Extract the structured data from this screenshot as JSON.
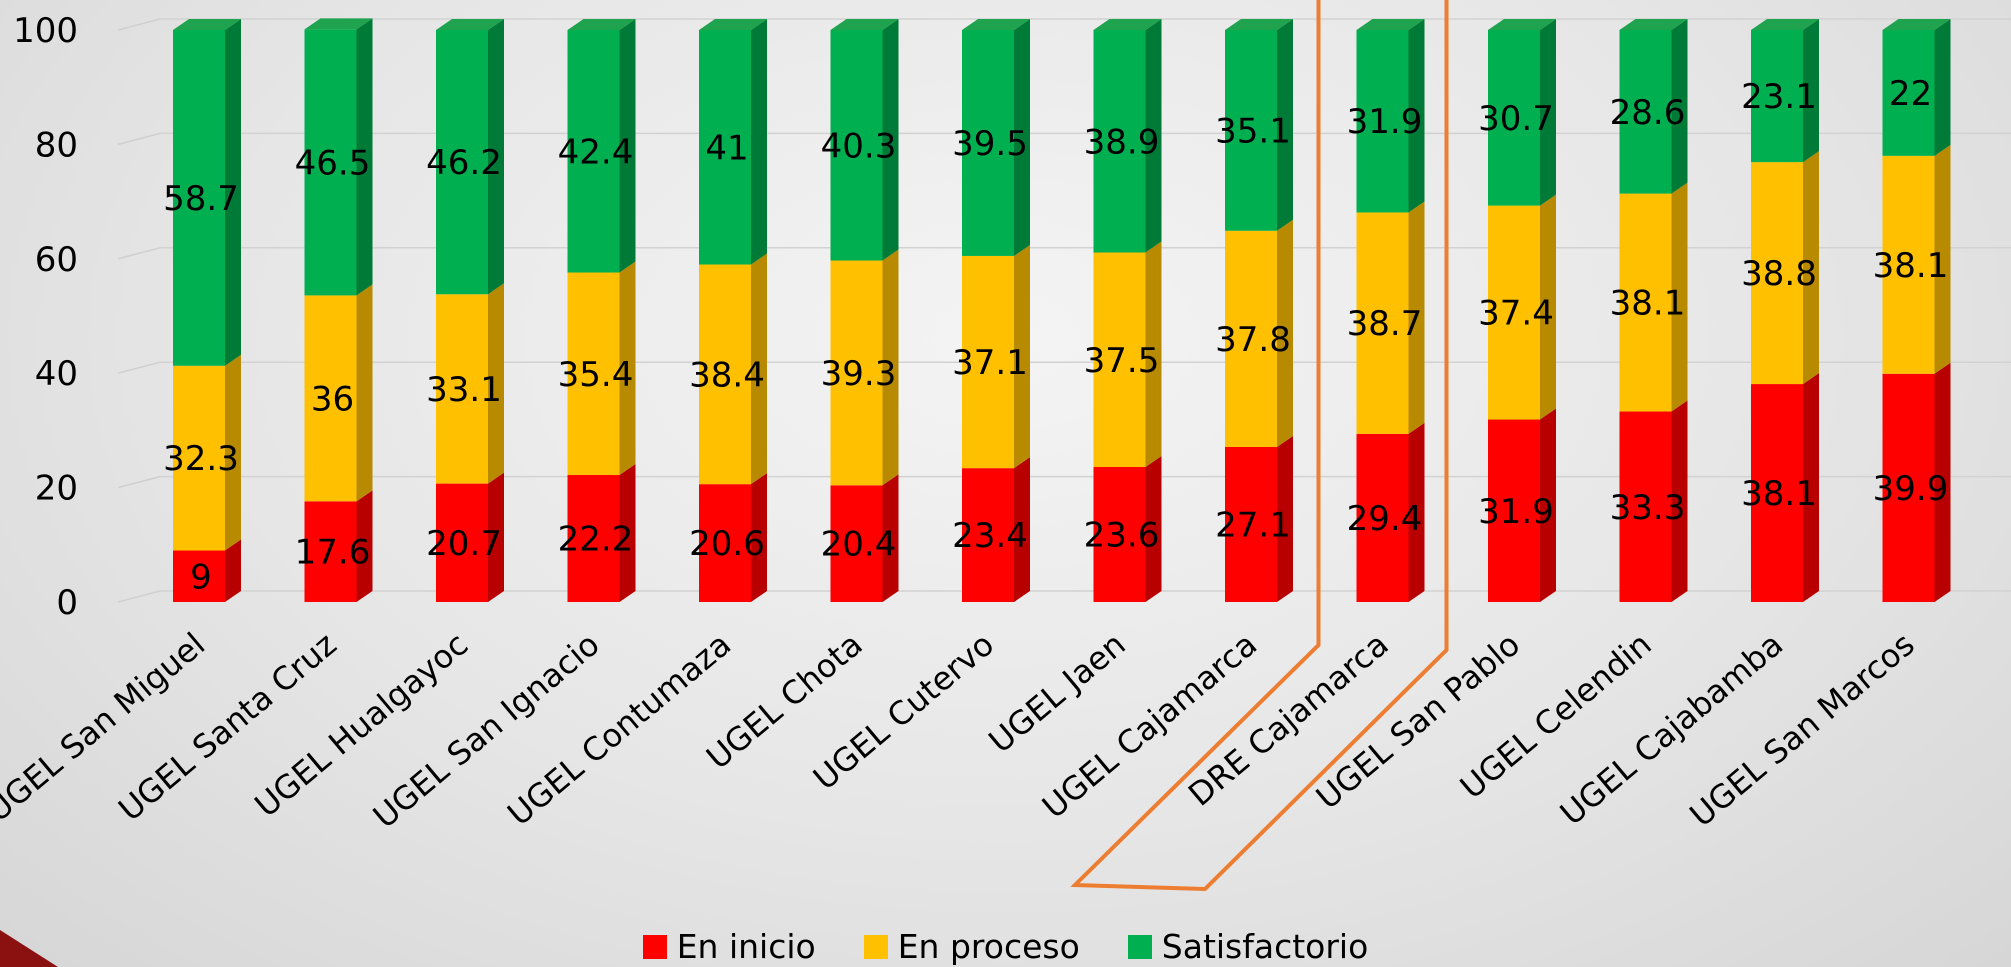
{
  "chart_data": {
    "type": "bar",
    "stacked": true,
    "three_d": true,
    "categories": [
      "UGEL San Miguel",
      "UGEL Santa Cruz",
      "UGEL Hualgayoc",
      "UGEL San Ignacio",
      "UGEL Contumaza",
      "UGEL Chota",
      "UGEL Cutervo",
      "UGEL Jaen",
      "UGEL Cajamarca",
      "DRE Cajamarca",
      "UGEL San Pablo",
      "UGEL Celendin",
      "UGEL Cajabamba",
      "UGEL San Marcos"
    ],
    "series": [
      {
        "name": "En inicio",
        "color": "#ff0000",
        "side_color": "#b80000",
        "top_color": "#ff4a4a",
        "values": [
          9,
          17.6,
          20.7,
          22.2,
          20.6,
          20.4,
          23.4,
          23.6,
          27.1,
          29.4,
          31.9,
          33.3,
          38.1,
          39.9
        ]
      },
      {
        "name": "En proceso",
        "color": "#ffc000",
        "side_color": "#b88a00",
        "top_color": "#ffd24d",
        "values": [
          32.3,
          36,
          33.1,
          35.4,
          38.4,
          39.3,
          37.1,
          37.5,
          37.8,
          38.7,
          37.4,
          38.1,
          38.8,
          38.1
        ]
      },
      {
        "name": "Satisfactorio",
        "color": "#00b050",
        "side_color": "#007a37",
        "top_color": "#1fa34f",
        "values": [
          58.7,
          46.5,
          46.2,
          42.4,
          41,
          40.3,
          39.5,
          38.9,
          35.1,
          31.9,
          30.7,
          28.6,
          23.1,
          22
        ]
      }
    ],
    "y_ticks": [
      "0",
      "20",
      "40",
      "60",
      "80",
      "100"
    ],
    "ylim": [
      0,
      100
    ],
    "grid": true,
    "legend_position": "bottom-center",
    "highlight_category": "DRE Cajamarca",
    "highlight_color": "#ed7d31"
  }
}
